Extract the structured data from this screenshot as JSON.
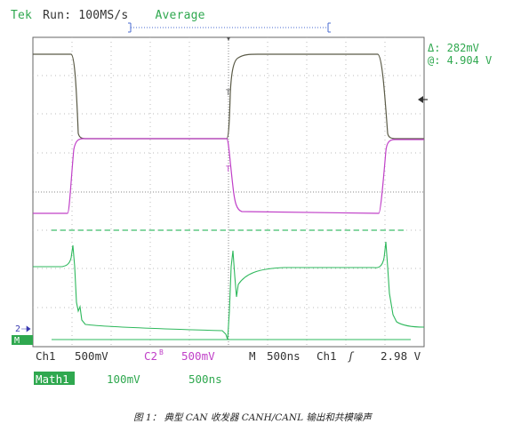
{
  "header": {
    "brand": "Tek",
    "run_status": "Run: 100MS/s",
    "acq_mode": "Average"
  },
  "readout": {
    "delta": "Δ: 282mV",
    "at": "@: 4.904 V"
  },
  "markers": {
    "ch2": "2",
    "math": "M"
  },
  "status_row1": {
    "ch1_label": "Ch1",
    "ch1_scale": "500mV",
    "ch2_label": "C2",
    "ch2_scale": "500mV",
    "time_label": "M",
    "time_scale": "500ns",
    "trigger_source": "Ch1",
    "trigger_level": "2.98 V"
  },
  "status_row2": {
    "math_label": "Math1",
    "math_scale": "100mV",
    "math_time": "500ns"
  },
  "caption": "图 1： 典型 CAN 收发器 CANH/CANL 输出和共模噪声",
  "colors": {
    "ch1": "#5a5a46",
    "ch2": "#c040c8",
    "math": "#2eb85c",
    "accent": "#2fa84f",
    "grid": "#b8b8b8",
    "dark": "#333333"
  }
}
